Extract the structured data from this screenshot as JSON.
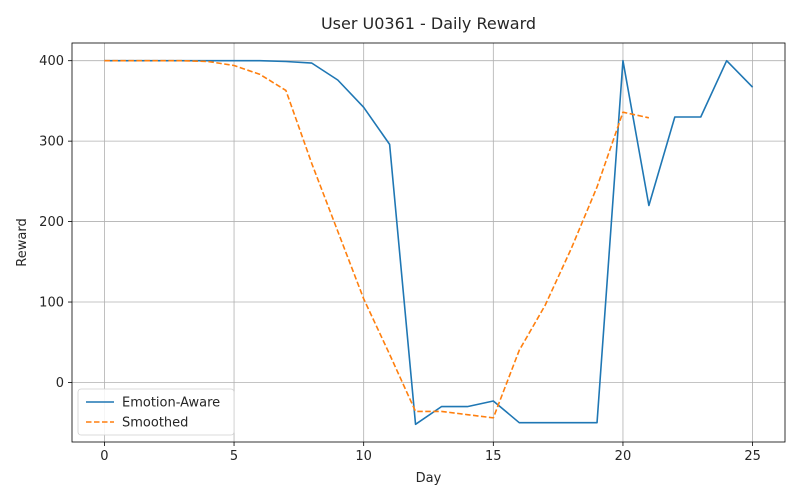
{
  "chart_data": {
    "type": "line",
    "title": "User U0361 - Daily Reward",
    "xlabel": "Day",
    "ylabel": "Reward",
    "xlim": [
      -1.25,
      26.25
    ],
    "ylim": [
      -74,
      422
    ],
    "xticks": [
      0,
      5,
      10,
      15,
      20,
      25
    ],
    "yticks": [
      0,
      100,
      200,
      300,
      400
    ],
    "grid": true,
    "legend_position": "lower-left",
    "series": [
      {
        "name": "Emotion-Aware",
        "color": "#1f77b4",
        "style": "solid",
        "x": [
          0,
          1,
          2,
          3,
          4,
          5,
          6,
          7,
          8,
          9,
          10,
          11,
          12,
          13,
          14,
          15,
          16,
          17,
          18,
          19,
          20,
          21,
          22,
          23,
          24,
          25
        ],
        "values": [
          400,
          400,
          400,
          400,
          400,
          400,
          400,
          399,
          397,
          376,
          342,
          296,
          -52,
          -30,
          -30,
          -23,
          -50,
          -50,
          -50,
          -50,
          400,
          220,
          330,
          330,
          400,
          367
        ]
      },
      {
        "name": "Smoothed",
        "color": "#ff7f0e",
        "style": "dashed",
        "x": [
          0,
          1,
          2,
          3,
          4,
          5,
          6,
          7,
          8,
          9,
          10,
          11,
          12,
          13,
          14,
          15,
          16,
          17,
          18,
          19,
          20,
          21
        ],
        "values": [
          400,
          400,
          400,
          400,
          399,
          394,
          383,
          363,
          272,
          188,
          104,
          35,
          -36,
          -36,
          -40,
          -44,
          40,
          96,
          166,
          243,
          336,
          329
        ]
      }
    ]
  }
}
